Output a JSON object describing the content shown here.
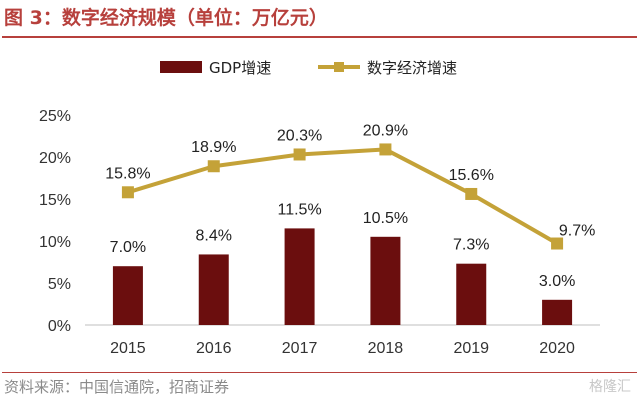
{
  "figure": {
    "title": "图 3：数字经济规模（单位：万亿元）",
    "source": "资料来源：中国信通院，招商证券",
    "watermark": "格隆汇"
  },
  "colors": {
    "bar": "#6b0e0e",
    "line": "#c4a238",
    "title": "#b7403c",
    "axis": "#bfbfbf"
  },
  "chart_data": {
    "type": "bar",
    "categories": [
      "2015",
      "2016",
      "2017",
      "2018",
      "2019",
      "2020"
    ],
    "series": [
      {
        "name": "GDP增速",
        "type": "bar",
        "values": [
          7.0,
          8.4,
          11.5,
          10.5,
          7.3,
          3.0
        ],
        "labels": [
          "7.0%",
          "8.4%",
          "11.5%",
          "10.5%",
          "7.3%",
          "3.0%"
        ]
      },
      {
        "name": "数字经济增速",
        "type": "line",
        "marker": "square",
        "values": [
          15.8,
          18.9,
          20.3,
          20.9,
          15.6,
          9.7
        ],
        "labels": [
          "15.8%",
          "18.9%",
          "20.3%",
          "20.9%",
          "15.6%",
          "9.7%"
        ]
      }
    ],
    "ylim": [
      0,
      25
    ],
    "yticks": [
      "0%",
      "5%",
      "10%",
      "15%",
      "20%",
      "25%"
    ],
    "grid": false,
    "legend": "top-center"
  }
}
